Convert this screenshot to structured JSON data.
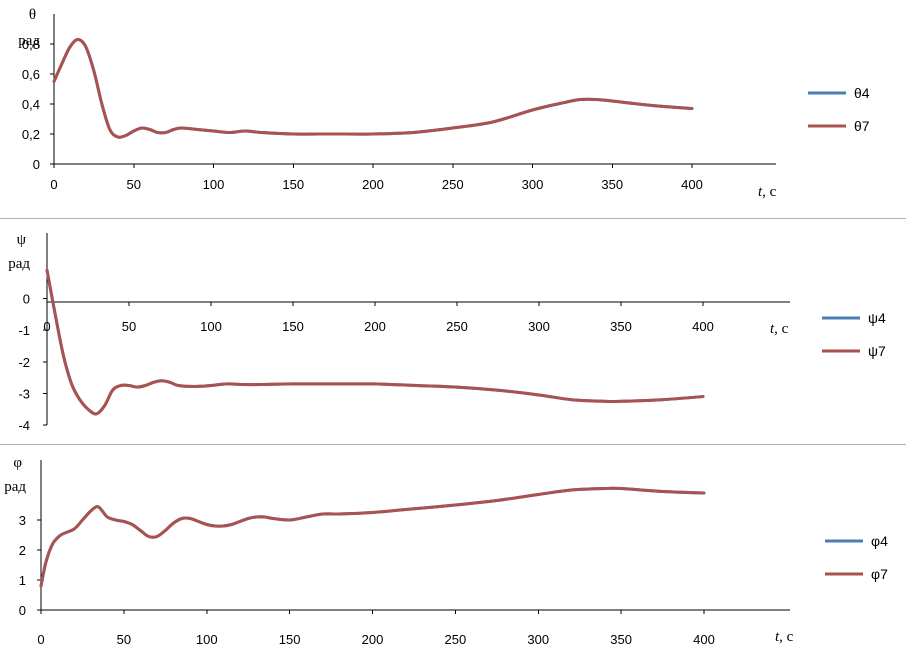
{
  "chart_data": [
    {
      "type": "line",
      "ylabel": "θ",
      "yunit": "рад",
      "xlabel_var": "t",
      "xlabel_unit": ", с",
      "xlim": [
        0,
        400
      ],
      "ylim": [
        0,
        1
      ],
      "xticks": [
        "0",
        "50",
        "100",
        "150",
        "200",
        "250",
        "300",
        "350",
        "400"
      ],
      "yticks": [
        "0",
        "0,2",
        "0,4",
        "0,6",
        "0,8"
      ],
      "legend_position": "right",
      "series": [
        {
          "name": "θ4",
          "color": "#4a7eb5",
          "x": [
            0,
            5,
            10,
            15,
            20,
            25,
            30,
            35,
            40,
            45,
            50,
            55,
            60,
            65,
            70,
            75,
            80,
            90,
            100,
            110,
            120,
            130,
            150,
            175,
            200,
            225,
            250,
            275,
            300,
            320,
            330,
            340,
            350,
            375,
            400
          ],
          "y": [
            0.55,
            0.67,
            0.78,
            0.83,
            0.78,
            0.62,
            0.4,
            0.23,
            0.18,
            0.19,
            0.22,
            0.24,
            0.23,
            0.21,
            0.21,
            0.23,
            0.24,
            0.23,
            0.22,
            0.21,
            0.22,
            0.21,
            0.2,
            0.2,
            0.2,
            0.21,
            0.24,
            0.28,
            0.36,
            0.41,
            0.43,
            0.43,
            0.42,
            0.39,
            0.37
          ]
        },
        {
          "name": "θ7",
          "color": "#a9524f",
          "x": [
            0,
            5,
            10,
            15,
            20,
            25,
            30,
            35,
            40,
            45,
            50,
            55,
            60,
            65,
            70,
            75,
            80,
            90,
            100,
            110,
            120,
            130,
            150,
            175,
            200,
            225,
            250,
            275,
            300,
            320,
            330,
            340,
            350,
            375,
            400
          ],
          "y": [
            0.55,
            0.67,
            0.78,
            0.83,
            0.78,
            0.62,
            0.4,
            0.23,
            0.18,
            0.19,
            0.22,
            0.24,
            0.23,
            0.21,
            0.21,
            0.23,
            0.24,
            0.23,
            0.22,
            0.21,
            0.22,
            0.21,
            0.2,
            0.2,
            0.2,
            0.21,
            0.24,
            0.28,
            0.36,
            0.41,
            0.43,
            0.43,
            0.42,
            0.39,
            0.37
          ]
        }
      ]
    },
    {
      "type": "line",
      "ylabel": "ψ",
      "yunit": "рад",
      "xlabel_var": "t",
      "xlabel_unit": ", с",
      "xlim": [
        0,
        400
      ],
      "ylim": [
        -4,
        1
      ],
      "xticks": [
        "0",
        "50",
        "100",
        "150",
        "200",
        "250",
        "300",
        "350",
        "400"
      ],
      "yticks": [
        "0",
        "-1",
        "-2",
        "-3",
        "-4"
      ],
      "legend_position": "right",
      "series": [
        {
          "name": "ψ4",
          "color": "#4a7eb5",
          "x": [
            0,
            5,
            10,
            15,
            20,
            25,
            30,
            35,
            40,
            45,
            50,
            55,
            60,
            65,
            70,
            75,
            80,
            90,
            100,
            110,
            120,
            130,
            150,
            175,
            200,
            225,
            250,
            275,
            300,
            320,
            340,
            350,
            375,
            400
          ],
          "y": [
            0.9,
            -0.5,
            -1.8,
            -2.7,
            -3.2,
            -3.5,
            -3.65,
            -3.4,
            -2.9,
            -2.75,
            -2.75,
            -2.8,
            -2.75,
            -2.65,
            -2.6,
            -2.65,
            -2.75,
            -2.78,
            -2.75,
            -2.7,
            -2.72,
            -2.72,
            -2.7,
            -2.7,
            -2.7,
            -2.75,
            -2.8,
            -2.9,
            -3.05,
            -3.2,
            -3.25,
            -3.25,
            -3.2,
            -3.1
          ]
        },
        {
          "name": "ψ7",
          "color": "#a9524f",
          "x": [
            0,
            5,
            10,
            15,
            20,
            25,
            30,
            35,
            40,
            45,
            50,
            55,
            60,
            65,
            70,
            75,
            80,
            90,
            100,
            110,
            120,
            130,
            150,
            175,
            200,
            225,
            250,
            275,
            300,
            320,
            340,
            350,
            375,
            400
          ],
          "y": [
            0.9,
            -0.5,
            -1.8,
            -2.7,
            -3.2,
            -3.5,
            -3.65,
            -3.4,
            -2.9,
            -2.75,
            -2.75,
            -2.8,
            -2.75,
            -2.65,
            -2.6,
            -2.65,
            -2.75,
            -2.78,
            -2.75,
            -2.7,
            -2.72,
            -2.72,
            -2.7,
            -2.7,
            -2.7,
            -2.75,
            -2.8,
            -2.9,
            -3.05,
            -3.2,
            -3.25,
            -3.25,
            -3.2,
            -3.1
          ]
        }
      ]
    },
    {
      "type": "line",
      "ylabel": "φ",
      "yunit": "рад",
      "xlabel_var": "t",
      "xlabel_unit": ", с",
      "xlim": [
        0,
        400
      ],
      "ylim": [
        0,
        5
      ],
      "xticks": [
        "0",
        "50",
        "100",
        "150",
        "200",
        "250",
        "300",
        "350",
        "400"
      ],
      "yticks": [
        "0",
        "1",
        "2",
        "3"
      ],
      "legend_position": "right",
      "series": [
        {
          "name": "φ4",
          "color": "#4a7eb5",
          "x": [
            0,
            3,
            7,
            12,
            20,
            25,
            30,
            34,
            37,
            40,
            45,
            50,
            55,
            60,
            65,
            70,
            75,
            80,
            85,
            90,
            95,
            100,
            105,
            110,
            115,
            120,
            125,
            130,
            135,
            140,
            150,
            160,
            170,
            180,
            200,
            220,
            250,
            275,
            300,
            320,
            340,
            350,
            375,
            400
          ],
          "y": [
            0.8,
            1.6,
            2.2,
            2.5,
            2.7,
            3.0,
            3.3,
            3.45,
            3.3,
            3.1,
            3.0,
            2.95,
            2.85,
            2.65,
            2.45,
            2.45,
            2.65,
            2.9,
            3.05,
            3.05,
            2.95,
            2.85,
            2.8,
            2.8,
            2.85,
            2.95,
            3.05,
            3.1,
            3.1,
            3.05,
            3.0,
            3.1,
            3.2,
            3.2,
            3.25,
            3.35,
            3.5,
            3.65,
            3.85,
            4.0,
            4.05,
            4.05,
            3.95,
            3.9
          ]
        },
        {
          "name": "φ7",
          "color": "#a9524f",
          "x": [
            0,
            3,
            7,
            12,
            20,
            25,
            30,
            34,
            37,
            40,
            45,
            50,
            55,
            60,
            65,
            70,
            75,
            80,
            85,
            90,
            95,
            100,
            105,
            110,
            115,
            120,
            125,
            130,
            135,
            140,
            150,
            160,
            170,
            180,
            200,
            220,
            250,
            275,
            300,
            320,
            340,
            350,
            375,
            400
          ],
          "y": [
            0.8,
            1.6,
            2.2,
            2.5,
            2.7,
            3.0,
            3.3,
            3.45,
            3.3,
            3.1,
            3.0,
            2.95,
            2.85,
            2.65,
            2.45,
            2.45,
            2.65,
            2.9,
            3.05,
            3.05,
            2.95,
            2.85,
            2.8,
            2.8,
            2.85,
            2.95,
            3.05,
            3.1,
            3.1,
            3.05,
            3.0,
            3.1,
            3.2,
            3.2,
            3.25,
            3.35,
            3.5,
            3.65,
            3.85,
            4.0,
            4.05,
            4.05,
            3.95,
            3.9
          ]
        }
      ]
    }
  ]
}
